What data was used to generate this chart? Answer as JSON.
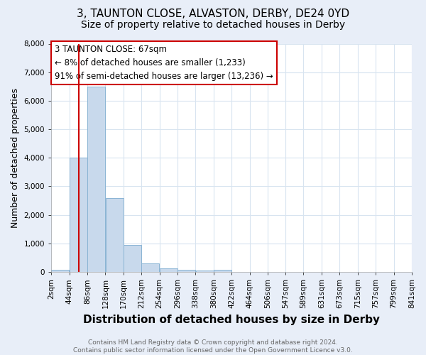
{
  "title": "3, TAUNTON CLOSE, ALVASTON, DERBY, DE24 0YD",
  "subtitle": "Size of property relative to detached houses in Derby",
  "xlabel": "Distribution of detached houses by size in Derby",
  "ylabel": "Number of detached properties",
  "bin_labels": [
    "2sqm",
    "44sqm",
    "86sqm",
    "128sqm",
    "170sqm",
    "212sqm",
    "254sqm",
    "296sqm",
    "338sqm",
    "380sqm",
    "422sqm",
    "464sqm",
    "506sqm",
    "547sqm",
    "589sqm",
    "631sqm",
    "673sqm",
    "715sqm",
    "757sqm",
    "799sqm",
    "841sqm"
  ],
  "bin_edges": [
    2,
    44,
    86,
    128,
    170,
    212,
    254,
    296,
    338,
    380,
    422,
    464,
    506,
    547,
    589,
    631,
    673,
    715,
    757,
    799,
    841
  ],
  "bar_heights": [
    80,
    4000,
    6500,
    2600,
    950,
    300,
    120,
    80,
    50,
    70,
    0,
    0,
    0,
    0,
    0,
    0,
    0,
    0,
    0,
    0
  ],
  "bar_color": "#c8d9ec",
  "bar_edgecolor": "#8ab4d4",
  "ylim": [
    0,
    8000
  ],
  "yticks": [
    0,
    1000,
    2000,
    3000,
    4000,
    5000,
    6000,
    7000,
    8000
  ],
  "property_size": 67,
  "vline_color": "#cc0000",
  "annotation_text": "3 TAUNTON CLOSE: 67sqm\n← 8% of detached houses are smaller (1,233)\n91% of semi-detached houses are larger (13,236) →",
  "annotation_box_color": "#cc0000",
  "footer_line1": "Contains HM Land Registry data © Crown copyright and database right 2024.",
  "footer_line2": "Contains public sector information licensed under the Open Government Licence v3.0.",
  "fig_bg_color": "#e8eef8",
  "plot_bg_color": "#ffffff",
  "grid_color": "#d8e4f0",
  "title_fontsize": 11,
  "subtitle_fontsize": 10,
  "xlabel_fontsize": 11,
  "ylabel_fontsize": 9,
  "tick_fontsize": 7.5,
  "footer_fontsize": 6.5,
  "annotation_fontsize": 8.5
}
